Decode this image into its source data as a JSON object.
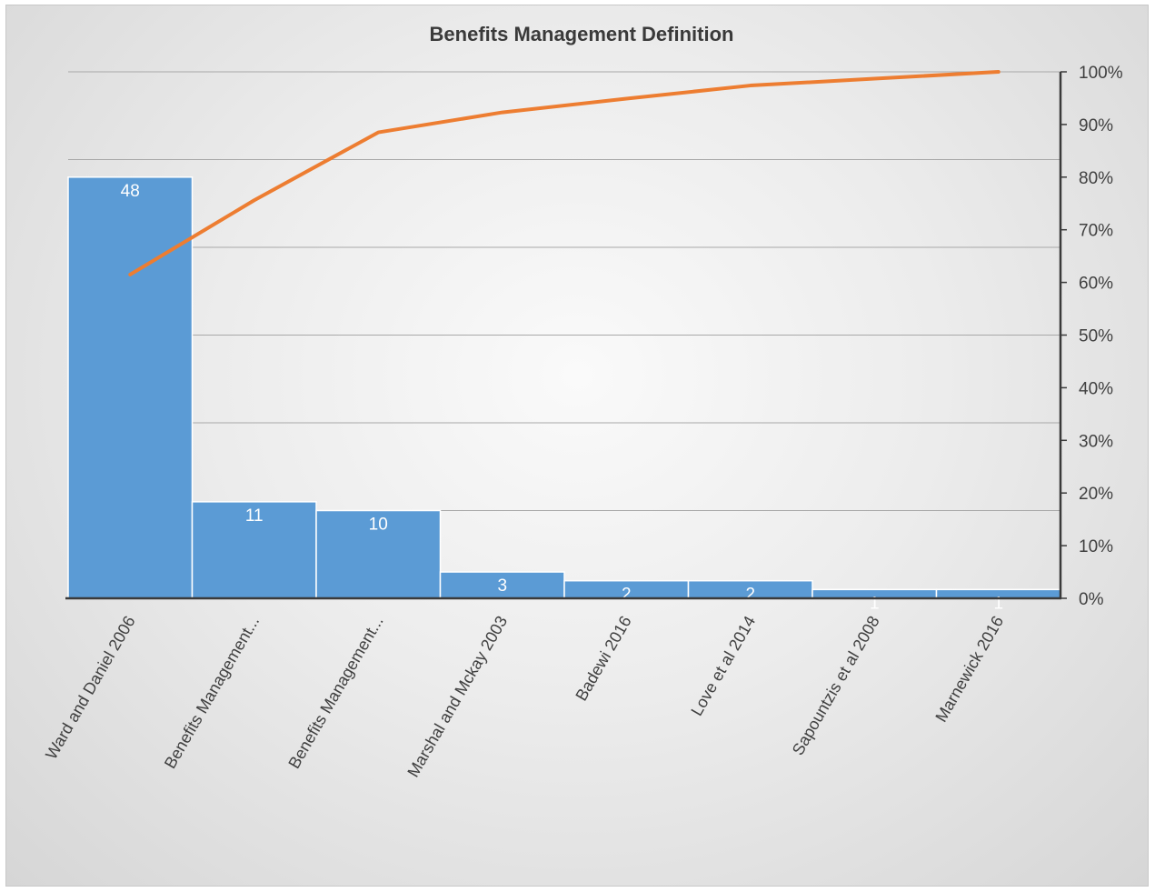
{
  "chart_data": {
    "type": "bar",
    "title": "Benefits Management Definition",
    "categories": [
      "Ward and Daniel 2006",
      "Benefits Management...",
      "Benefits Management...",
      "Marshal and Mckay 2003",
      "Badewi 2016",
      "Love et al 2014",
      "Sapountzis et al 2008",
      "Marnewick 2016"
    ],
    "series": [
      {
        "type": "bar",
        "values": [
          48,
          11,
          10,
          3,
          2,
          2,
          1,
          1
        ],
        "color": "#5b9bd5"
      },
      {
        "type": "line",
        "axis": "secondary",
        "values": [
          61.5,
          75.6,
          88.5,
          92.3,
          94.9,
          97.4,
          98.7,
          100
        ],
        "color": "#ed7d31"
      }
    ],
    "ylim": [
      0,
      60
    ],
    "y2lim": [
      0,
      100
    ],
    "y2ticks": [
      "0%",
      "10%",
      "20%",
      "30%",
      "40%",
      "50%",
      "60%",
      "70%",
      "80%",
      "90%",
      "100%"
    ],
    "grid": true,
    "legend": "none"
  }
}
